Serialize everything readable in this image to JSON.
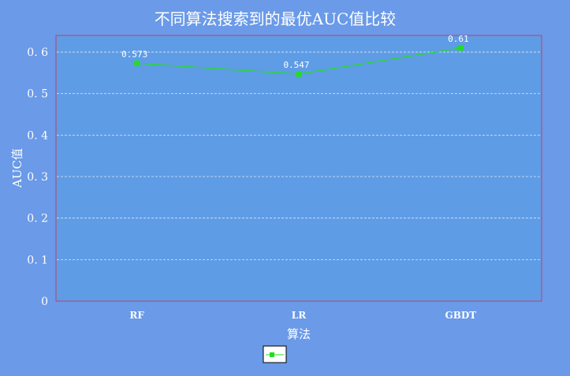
{
  "chart_data": {
    "type": "line",
    "title": "不同算法搜索到的最优AUC值比较",
    "xlabel": "算法",
    "ylabel": "AUC值",
    "categories": [
      "RF",
      "LR",
      "GBDT"
    ],
    "series": [
      {
        "values": [
          0.573,
          0.547,
          0.61
        ],
        "color": "#22dd22"
      }
    ],
    "data_labels": [
      "0.573",
      "0.547",
      "0.61"
    ],
    "ylim": [
      0,
      0.64
    ],
    "yticks": [
      0,
      0.1,
      0.2,
      0.3,
      0.4,
      0.5,
      0.6
    ],
    "ytick_labels": [
      "0",
      "0. 1",
      "0. 2",
      "0. 3",
      "0. 4",
      "0. 5",
      "0. 6"
    ],
    "grid": true,
    "legend_position": "bottom",
    "colors": {
      "background": "#6a9ae8",
      "plot_area": "#5f9ce6",
      "plot_border": "#c0406a",
      "grid": "#dce8f8",
      "series": "#22dd22"
    }
  }
}
